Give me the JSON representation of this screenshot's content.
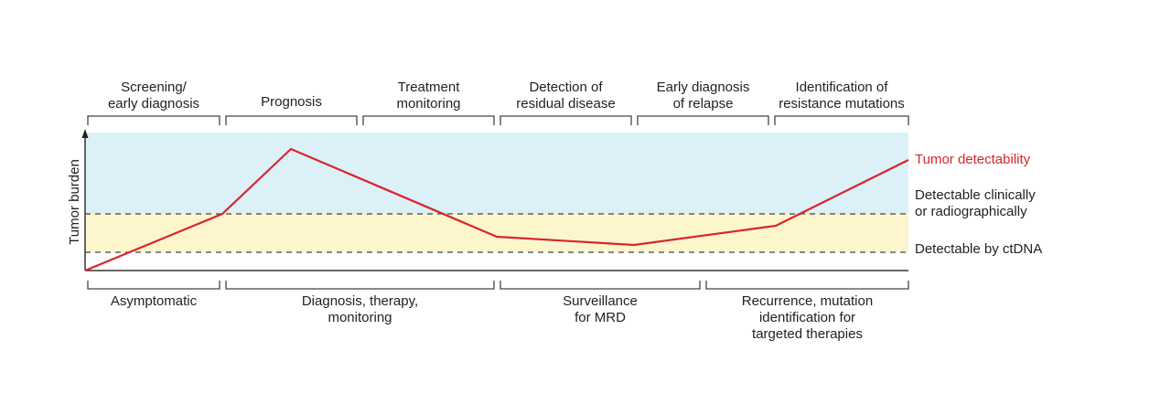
{
  "y_axis_label": "Tumor burden",
  "top_phases": [
    {
      "lines": [
        "Screening/",
        "early diagnosis"
      ]
    },
    {
      "lines": [
        "Prognosis"
      ]
    },
    {
      "lines": [
        "Treatment",
        "monitoring"
      ]
    },
    {
      "lines": [
        "Detection of",
        "residual disease"
      ]
    },
    {
      "lines": [
        "Early diagnosis",
        "of relapse"
      ]
    },
    {
      "lines": [
        "Identification of",
        "resistance mutations"
      ]
    }
  ],
  "bottom_phases": [
    {
      "lines": [
        "Asymptomatic"
      ]
    },
    {
      "lines": [
        "Diagnosis, therapy,",
        "monitoring"
      ]
    },
    {
      "lines": [
        "Surveillance",
        "for MRD"
      ]
    },
    {
      "lines": [
        "Recurrence, mutation",
        "identification for",
        "targeted therapies"
      ]
    }
  ],
  "legend": {
    "curve": "Tumor detectability",
    "clinical": [
      "Detectable clinically",
      "or radiographically"
    ],
    "ctdna": "Detectable by ctDNA"
  },
  "colors": {
    "curve": "#d9262e",
    "clinical_zone": "#dcf0f8",
    "ctdna_zone": "#fdf6cc",
    "axis": "#333333"
  }
}
